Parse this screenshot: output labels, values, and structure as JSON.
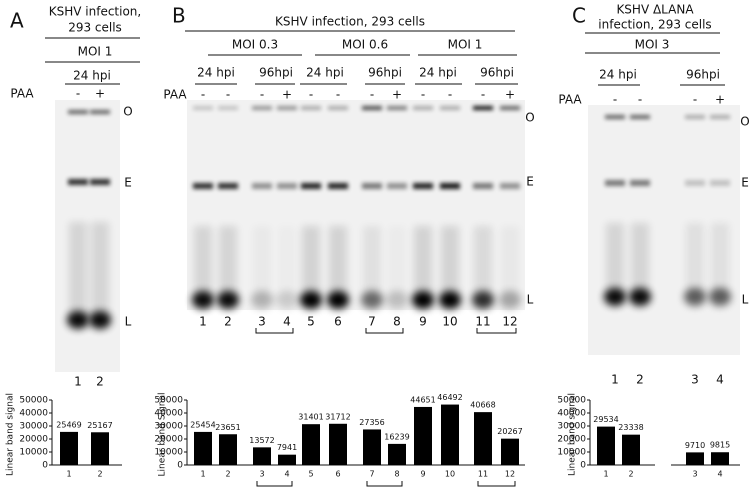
{
  "panels": [
    {
      "letter": "A",
      "title": [
        "KSHV infection,",
        "293 cells"
      ],
      "moi": [
        "MOI 1"
      ],
      "hpi": [
        "24 hpi"
      ],
      "paa_label": "PAA",
      "paa": [
        "-",
        "+"
      ],
      "bands": [
        "O",
        "E",
        "L"
      ],
      "lanes": [
        "1",
        "2"
      ]
    },
    {
      "letter": "B",
      "title": [
        "KSHV infection, 293 cells"
      ],
      "moi": [
        "MOI 0.3",
        "MOI 0.6",
        "MOI 1"
      ],
      "hpi": [
        "24 hpi",
        "96hpi",
        "24 hpi",
        "96hpi",
        "24 hpi",
        "96hpi"
      ],
      "paa_label": "PAA",
      "paa": [
        "-",
        "-",
        "-",
        "+",
        "-",
        "-",
        "-",
        "+",
        "-",
        "-",
        "-",
        "+"
      ],
      "bands": [
        "O",
        "E",
        "L"
      ],
      "lanes": [
        "1",
        "2",
        "3",
        "4",
        "5",
        "6",
        "7",
        "8",
        "9",
        "10",
        "11",
        "12"
      ]
    },
    {
      "letter": "C",
      "title": [
        "KSHV ΔLANA",
        "infection, 293 cells"
      ],
      "moi": [
        "MOI 3"
      ],
      "hpi": [
        "24 hpi",
        "96hpi"
      ],
      "paa_label": "PAA",
      "paa": [
        "-",
        "-",
        "-",
        "+"
      ],
      "bands": [
        "O",
        "E",
        "L"
      ],
      "lanes": [
        "1",
        "2",
        "3",
        "4"
      ]
    }
  ],
  "chart_data": [
    {
      "type": "bar",
      "ylabel": "Linear band signal",
      "categories": [
        "1",
        "2"
      ],
      "values": [
        25469,
        25167
      ],
      "color": "#000000",
      "ylim": [
        0,
        50000
      ],
      "yticks": [
        0,
        10000,
        20000,
        30000,
        40000,
        50000
      ]
    },
    {
      "type": "bar",
      "ylabel": "Linear band Signal",
      "categories": [
        "1",
        "2",
        "3",
        "4",
        "5",
        "6",
        "7",
        "8",
        "9",
        "10",
        "11",
        "12"
      ],
      "values": [
        25454,
        23651,
        13572,
        7941,
        31401,
        31712,
        27356,
        16239,
        44651,
        46492,
        40668,
        20267
      ],
      "color": "#000000",
      "ylim": [
        0,
        50000
      ],
      "yticks": [
        0,
        10000,
        20000,
        30000,
        40000,
        50000
      ]
    },
    {
      "type": "bar",
      "ylabel": "Linear band signal",
      "categories": [
        "1",
        "2",
        "3",
        "4"
      ],
      "values": [
        29534,
        23338,
        9710,
        9815
      ],
      "color": "#000000",
      "ylim": [
        0,
        50000
      ],
      "yticks": [
        0,
        10000,
        20000,
        30000,
        40000,
        50000
      ]
    }
  ]
}
